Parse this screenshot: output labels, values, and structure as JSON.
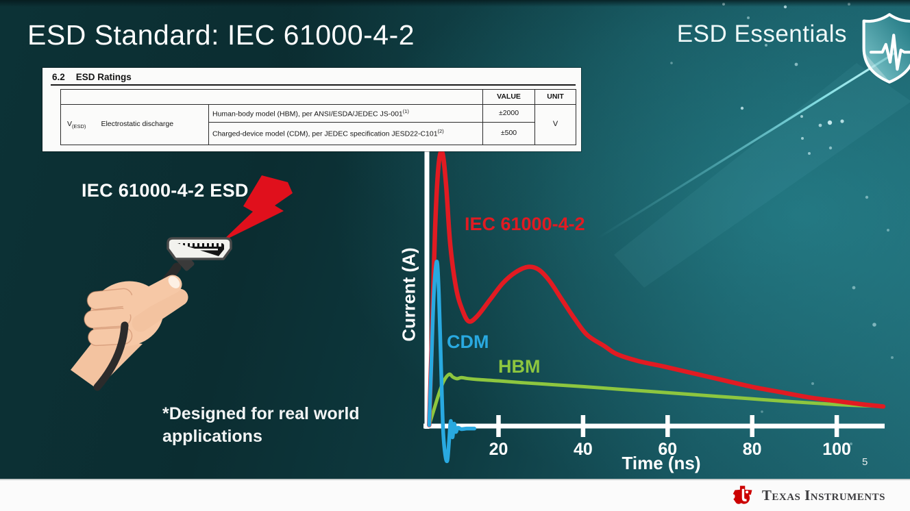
{
  "slide": {
    "title": "ESD Standard: IEC 61000-4-2",
    "program": "ESD Essentials",
    "page_number": "5"
  },
  "ratings_table": {
    "section": "6.2",
    "heading": "ESD Ratings",
    "value_header": "VALUE",
    "unit_header": "UNIT",
    "row_symbol": "V",
    "row_symbol_sub": "(ESD)",
    "row_label": "Electrostatic discharge",
    "rows": [
      {
        "desc": "Human-body model (HBM), per ANSI/ESDA/JEDEC JS-001",
        "sup": "(1)",
        "value": "±2000"
      },
      {
        "desc": "Charged-device model (CDM), per JEDEC specification JESD22-C101",
        "sup": "(2)",
        "value": "±500"
      }
    ],
    "unit": "V"
  },
  "illustration": {
    "label": "IEC 61000-4-2 ESD",
    "note": "*Designed for real world applications",
    "bolt_color": "#e0101c"
  },
  "footer": {
    "brand": "Texas Instruments",
    "logo_color": "#cc0000"
  },
  "chart_data": {
    "type": "line",
    "title": "",
    "xlabel": "Time (ns)",
    "ylabel": "Current (A)",
    "x_ticks": [
      20,
      40,
      60,
      80,
      100
    ],
    "xlim": [
      0,
      112
    ],
    "ylim_relative": [
      -0.15,
      1.05
    ],
    "grid": false,
    "legend_position": "inline-labels",
    "series": [
      {
        "name": "IEC 61000-4-2",
        "color": "#e11b22",
        "stroke_width": 6.5,
        "points": [
          [
            3.6,
            0
          ],
          [
            4.2,
            0.3
          ],
          [
            5.0,
            0.72
          ],
          [
            5.8,
            0.95
          ],
          [
            6.7,
            1.0
          ],
          [
            7.6,
            0.88
          ],
          [
            8.6,
            0.66
          ],
          [
            10,
            0.5
          ],
          [
            11.5,
            0.42
          ],
          [
            13,
            0.38
          ],
          [
            15,
            0.4
          ],
          [
            18,
            0.46
          ],
          [
            21,
            0.52
          ],
          [
            24,
            0.56
          ],
          [
            27,
            0.58
          ],
          [
            29.5,
            0.57
          ],
          [
            32,
            0.53
          ],
          [
            35,
            0.46
          ],
          [
            38,
            0.39
          ],
          [
            41,
            0.33
          ],
          [
            45,
            0.29
          ],
          [
            48,
            0.26
          ],
          [
            53,
            0.235
          ],
          [
            59,
            0.215
          ],
          [
            66,
            0.19
          ],
          [
            73,
            0.165
          ],
          [
            80,
            0.14
          ],
          [
            87,
            0.12
          ],
          [
            94,
            0.1
          ],
          [
            100,
            0.088
          ],
          [
            106,
            0.076
          ],
          [
            111,
            0.068
          ]
        ]
      },
      {
        "name": "CDM",
        "color": "#29a9e0",
        "stroke_width": 5.5,
        "points": [
          [
            3.6,
            0
          ],
          [
            4.1,
            0.22
          ],
          [
            4.7,
            0.48
          ],
          [
            5.4,
            0.6
          ],
          [
            5.9,
            0.48
          ],
          [
            6.4,
            0.22
          ],
          [
            6.9,
            -0.02
          ],
          [
            7.4,
            -0.11
          ],
          [
            7.9,
            -0.13
          ],
          [
            8.3,
            -0.06
          ],
          [
            8.7,
            0.015
          ],
          [
            9.1,
            -0.045
          ],
          [
            9.5,
            0.005
          ],
          [
            9.9,
            -0.025
          ],
          [
            10.4,
            -0.01
          ],
          [
            11.2,
            -0.015
          ],
          [
            12.5,
            -0.013
          ],
          [
            14.3,
            -0.013
          ]
        ]
      },
      {
        "name": "HBM",
        "color": "#8dc63f",
        "stroke_width": 5,
        "points": [
          [
            3.6,
            0
          ],
          [
            4.6,
            0.05
          ],
          [
            5.8,
            0.11
          ],
          [
            7.0,
            0.16
          ],
          [
            8.3,
            0.186
          ],
          [
            9.2,
            0.176
          ],
          [
            10.2,
            0.17
          ],
          [
            11.2,
            0.174
          ],
          [
            12.5,
            0.171
          ],
          [
            15,
            0.167
          ],
          [
            20,
            0.162
          ],
          [
            26,
            0.155
          ],
          [
            33,
            0.148
          ],
          [
            40,
            0.141
          ],
          [
            48,
            0.132
          ],
          [
            56,
            0.123
          ],
          [
            64,
            0.114
          ],
          [
            72,
            0.105
          ],
          [
            80,
            0.096
          ],
          [
            88,
            0.087
          ],
          [
            96,
            0.079
          ],
          [
            103,
            0.073
          ],
          [
            111,
            0.069
          ]
        ]
      }
    ]
  }
}
